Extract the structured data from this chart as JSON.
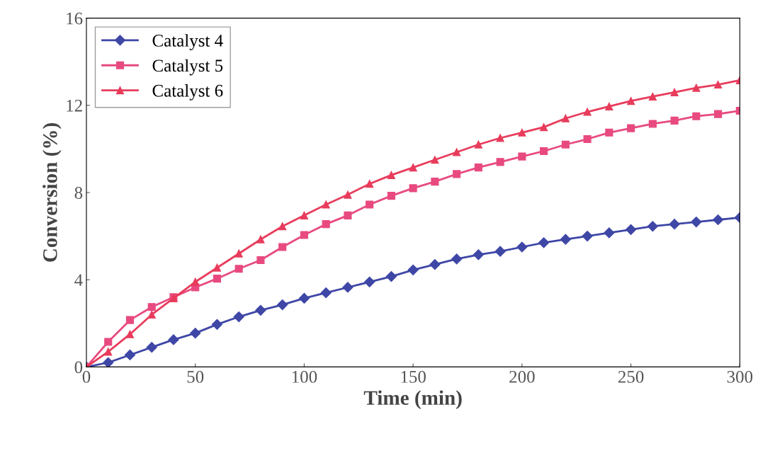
{
  "chart_data": {
    "type": "line",
    "xlabel": "Time (min)",
    "ylabel": "Conversion (%)",
    "x": [
      0,
      10,
      20,
      30,
      40,
      50,
      60,
      70,
      80,
      90,
      100,
      110,
      120,
      130,
      140,
      150,
      160,
      170,
      180,
      190,
      200,
      210,
      220,
      230,
      240,
      250,
      260,
      270,
      280,
      290,
      300
    ],
    "series": [
      {
        "name": "Catalyst 4",
        "color": "#3f47a6",
        "marker": "diamond",
        "values": [
          0,
          0.2,
          0.55,
          0.9,
          1.25,
          1.55,
          1.95,
          2.3,
          2.6,
          2.85,
          3.15,
          3.4,
          3.65,
          3.9,
          4.15,
          4.45,
          4.7,
          4.95,
          5.15,
          5.3,
          5.5,
          5.7,
          5.85,
          6.0,
          6.15,
          6.3,
          6.45,
          6.55,
          6.65,
          6.75,
          6.85
        ]
      },
      {
        "name": "Catalyst 5",
        "color": "#e84a80",
        "marker": "square",
        "values": [
          0,
          1.15,
          2.15,
          2.75,
          3.2,
          3.65,
          4.05,
          4.5,
          4.9,
          5.5,
          6.05,
          6.55,
          6.95,
          7.45,
          7.85,
          8.2,
          8.5,
          8.85,
          9.15,
          9.4,
          9.65,
          9.9,
          10.2,
          10.45,
          10.75,
          10.95,
          11.15,
          11.3,
          11.5,
          11.6,
          11.75
        ]
      },
      {
        "name": "Catalyst 6",
        "color": "#e83c5c",
        "marker": "triangle",
        "values": [
          0,
          0.7,
          1.5,
          2.4,
          3.15,
          3.9,
          4.55,
          5.2,
          5.85,
          6.45,
          6.95,
          7.45,
          7.9,
          8.4,
          8.8,
          9.15,
          9.5,
          9.85,
          10.2,
          10.5,
          10.75,
          11.0,
          11.4,
          11.7,
          11.95,
          12.2,
          12.4,
          12.6,
          12.8,
          12.95,
          13.15
        ]
      }
    ],
    "xlim": [
      0,
      300
    ],
    "xticks": [
      0,
      50,
      100,
      150,
      200,
      250,
      300
    ],
    "ylim": [
      0,
      16
    ],
    "yticks": [
      0,
      4,
      8,
      12,
      16
    ],
    "grid": false,
    "legend": "top left",
    "line_style": "solid"
  }
}
